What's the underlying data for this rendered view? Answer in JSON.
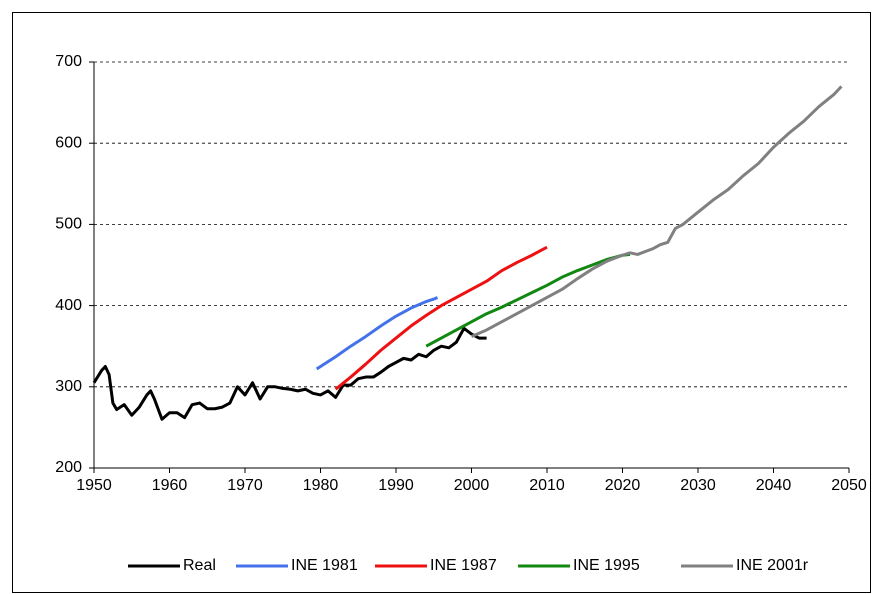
{
  "chart_data": {
    "type": "line",
    "xlim": [
      1950,
      2050
    ],
    "xticks": [
      1950,
      1960,
      1970,
      1980,
      1990,
      2000,
      2010,
      2020,
      2030,
      2040,
      2050
    ],
    "ylim": [
      200,
      700
    ],
    "yticks": [
      200,
      300,
      400,
      500,
      600,
      700
    ],
    "grid": true,
    "legend": "bottom",
    "series": [
      {
        "name": "Real",
        "color": "#000000",
        "x": [
          1950,
          1951,
          1951.5,
          1952,
          1952.5,
          1953,
          1954,
          1955,
          1956,
          1957,
          1957.5,
          1958,
          1959,
          1960,
          1961,
          1962,
          1963,
          1964,
          1965,
          1966,
          1967,
          1968,
          1969,
          1970,
          1971,
          1972,
          1973,
          1974,
          1975,
          1976,
          1977,
          1978,
          1979,
          1980,
          1981,
          1982,
          1983,
          1984,
          1985,
          1986,
          1987,
          1988,
          1989,
          1990,
          1991,
          1992,
          1993,
          1994,
          1995,
          1996,
          1997,
          1998,
          1999,
          2000,
          2001,
          2002
        ],
        "values": [
          305,
          320,
          325,
          315,
          280,
          272,
          278,
          265,
          275,
          290,
          295,
          285,
          260,
          268,
          268,
          262,
          278,
          280,
          273,
          273,
          275,
          280,
          300,
          290,
          305,
          285,
          300,
          300,
          298,
          297,
          295,
          297,
          292,
          290,
          295,
          287,
          302,
          302,
          310,
          312,
          312,
          318,
          325,
          330,
          335,
          333,
          340,
          337,
          345,
          350,
          348,
          355,
          372,
          365,
          360,
          360
        ]
      },
      {
        "name": "INE 1981",
        "color": "#4472e8",
        "x": [
          1979.5,
          1980,
          1982,
          1984,
          1986,
          1988,
          1990,
          1992,
          1994,
          1995,
          1995.5
        ],
        "values": [
          322,
          325,
          337,
          350,
          362,
          375,
          387,
          397,
          405,
          408,
          410
        ]
      },
      {
        "name": "INE 1987",
        "color": "#ee1111",
        "x": [
          1982,
          1984,
          1986,
          1988,
          1990,
          1992,
          1994,
          1996,
          1998,
          2000,
          2002,
          2004,
          2006,
          2008,
          2010
        ],
        "values": [
          297,
          312,
          328,
          345,
          360,
          375,
          388,
          400,
          410,
          420,
          430,
          443,
          453,
          462,
          472
        ]
      },
      {
        "name": "INE 1995",
        "color": "#118811",
        "x": [
          1994,
          1996,
          1998,
          2000,
          2002,
          2004,
          2006,
          2008,
          2010,
          2012,
          2014,
          2016,
          2018,
          2020,
          2021
        ],
        "values": [
          350,
          360,
          370,
          380,
          390,
          398,
          407,
          416,
          425,
          435,
          443,
          450,
          457,
          462,
          463
        ]
      },
      {
        "name": "INE 2001r",
        "color": "#808080",
        "x": [
          2000,
          2002,
          2004,
          2006,
          2008,
          2010,
          2012,
          2014,
          2016,
          2018,
          2020,
          2021,
          2022,
          2024,
          2025,
          2026,
          2027,
          2028,
          2030,
          2032,
          2034,
          2036,
          2038,
          2040,
          2042,
          2044,
          2046,
          2048,
          2049
        ],
        "values": [
          362,
          370,
          380,
          390,
          400,
          410,
          420,
          433,
          445,
          455,
          462,
          465,
          463,
          470,
          475,
          478,
          495,
          500,
          515,
          530,
          543,
          560,
          575,
          595,
          612,
          627,
          645,
          660,
          670
        ]
      }
    ]
  }
}
